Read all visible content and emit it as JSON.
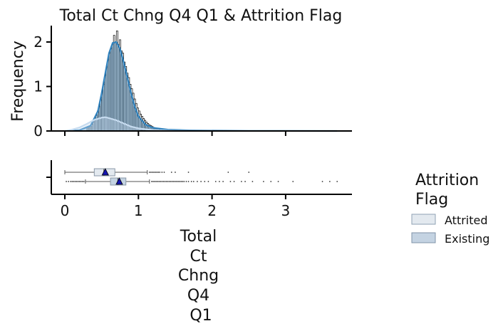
{
  "chart_data": [
    {
      "type": "histogram",
      "title": "Total Ct Chng Q4 Q1 & Attrition Flag",
      "ylabel": "Frequency",
      "xlabel": "",
      "xlim": [
        -0.2,
        3.9
      ],
      "ylim": [
        0,
        2.35
      ],
      "yticks": [
        0,
        1,
        2
      ],
      "grid": false,
      "bin_width": 0.02,
      "x_start": 0.3,
      "series": [
        {
          "name": "Existing",
          "kde": [
            [
              0.0,
              0.0
            ],
            [
              0.2,
              0.02
            ],
            [
              0.35,
              0.12
            ],
            [
              0.45,
              0.45
            ],
            [
              0.5,
              0.85
            ],
            [
              0.55,
              1.3
            ],
            [
              0.6,
              1.75
            ],
            [
              0.65,
              1.98
            ],
            [
              0.7,
              2.0
            ],
            [
              0.75,
              1.85
            ],
            [
              0.8,
              1.55
            ],
            [
              0.85,
              1.2
            ],
            [
              0.9,
              0.85
            ],
            [
              0.95,
              0.55
            ],
            [
              1.0,
              0.33
            ],
            [
              1.1,
              0.14
            ],
            [
              1.2,
              0.07
            ],
            [
              1.4,
              0.03
            ],
            [
              1.7,
              0.015
            ],
            [
              2.0,
              0.008
            ],
            [
              2.5,
              0.004
            ],
            [
              3.0,
              0.002
            ],
            [
              3.7,
              0.0
            ]
          ]
        },
        {
          "name": "Attrited",
          "kde": [
            [
              0.0,
              0.0
            ],
            [
              0.1,
              0.03
            ],
            [
              0.2,
              0.08
            ],
            [
              0.3,
              0.16
            ],
            [
              0.4,
              0.25
            ],
            [
              0.5,
              0.3
            ],
            [
              0.55,
              0.31
            ],
            [
              0.6,
              0.29
            ],
            [
              0.7,
              0.24
            ],
            [
              0.8,
              0.17
            ],
            [
              0.9,
              0.1
            ],
            [
              1.0,
              0.06
            ],
            [
              1.2,
              0.02
            ],
            [
              1.5,
              0.005
            ],
            [
              2.0,
              0.0
            ]
          ]
        }
      ],
      "histogram_values": [
        0.08,
        0.1,
        0.12,
        0.15,
        0.2,
        0.25,
        0.35,
        0.45,
        0.55,
        0.7,
        0.9,
        1.05,
        1.25,
        1.45,
        1.6,
        1.75,
        1.85,
        1.95,
        2.15,
        2.0,
        2.25,
        1.95,
        2.05,
        1.8,
        1.75,
        1.55,
        1.45,
        1.3,
        1.2,
        1.05,
        0.95,
        0.85,
        0.72,
        0.62,
        0.52,
        0.45,
        0.38,
        0.33,
        0.28,
        0.24,
        0.2,
        0.17,
        0.14,
        0.12,
        0.1,
        0.08,
        0.07,
        0.06,
        0.05,
        0.04,
        0.04,
        0.03,
        0.03,
        0.02,
        0.02,
        0.02,
        0.015,
        0.015,
        0.01,
        0.01
      ]
    },
    {
      "type": "boxplot",
      "xlabel": "Total\nCt\nChng\nQ4\nQ1",
      "xticks": [
        0,
        1,
        2,
        3
      ],
      "series": [
        {
          "name": "Attrited",
          "whisker_low": 0.0,
          "q1": 0.4,
          "median": 0.53,
          "q3": 0.68,
          "whisker_high": 1.12,
          "mean": 0.55,
          "outliers": [
            1.15,
            1.17,
            1.19,
            1.21,
            1.23,
            1.25,
            1.27,
            1.29,
            1.32,
            1.35,
            1.45,
            1.5,
            1.68,
            2.22,
            2.5
          ]
        },
        {
          "name": "Existing",
          "whisker_low": 0.28,
          "q1": 0.62,
          "median": 0.72,
          "q3": 0.83,
          "whisker_high": 1.15,
          "mean": 0.74,
          "outliers": [
            0.02,
            0.05,
            0.08,
            0.1,
            0.12,
            0.14,
            0.16,
            0.18,
            0.2,
            0.22,
            0.24,
            0.26,
            1.18,
            1.2,
            1.22,
            1.24,
            1.26,
            1.28,
            1.3,
            1.32,
            1.34,
            1.36,
            1.38,
            1.4,
            1.42,
            1.44,
            1.46,
            1.48,
            1.5,
            1.52,
            1.54,
            1.56,
            1.58,
            1.6,
            1.62,
            1.65,
            1.68,
            1.72,
            1.75,
            1.8,
            1.85,
            1.9,
            1.95,
            2.05,
            2.1,
            2.15,
            2.25,
            2.3,
            2.4,
            2.45,
            2.55,
            2.7,
            2.8,
            2.9,
            3.1,
            3.5,
            3.6,
            3.7
          ]
        }
      ]
    }
  ],
  "legend": {
    "title_line1": "Attrition",
    "title_line2": "Flag",
    "placement": "right",
    "items": [
      {
        "label": "Attrited",
        "color": "#e3e9ef"
      },
      {
        "label": "Existing",
        "color": "#c4d3e2"
      }
    ]
  },
  "colors": {
    "existing_kde": "#3182bd",
    "attrited_kde": "#c6dbef",
    "hist_fill": "#ffffff",
    "hist_edge": "#000000",
    "mean_marker": "#1515b0",
    "axis": "#000000"
  }
}
